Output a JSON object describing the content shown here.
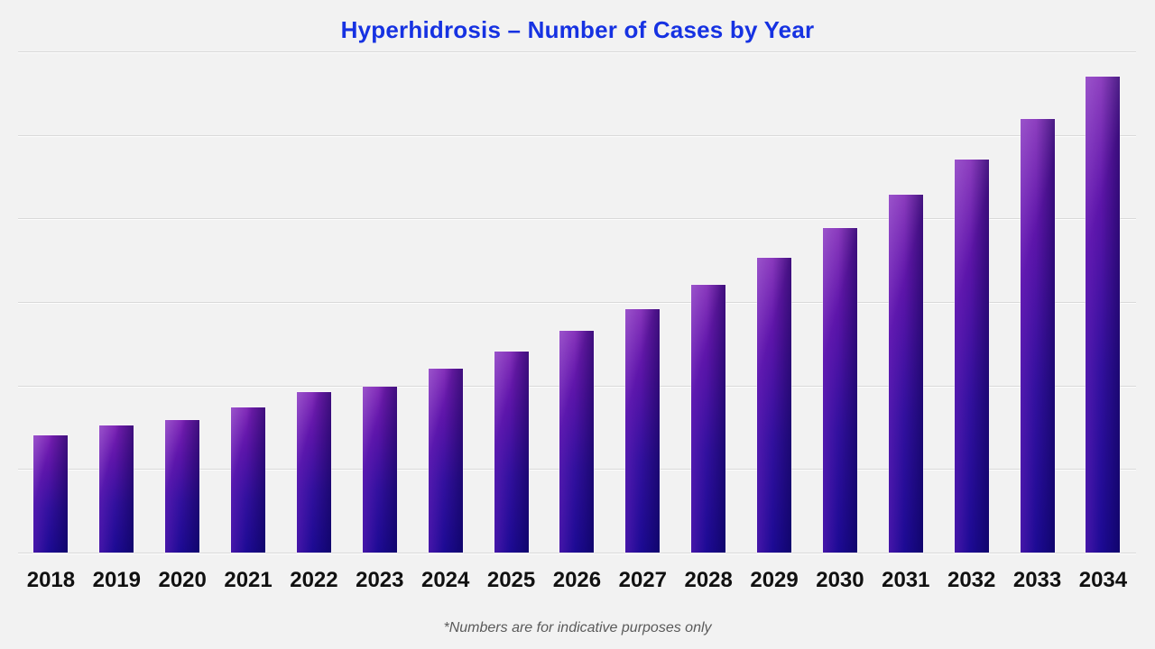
{
  "page": {
    "background_color": "#f2f2f2",
    "title_color": "#1632e2",
    "label_color": "#111111",
    "footnote_color": "#5a5a5a",
    "gridline_color": "#d9d9d9"
  },
  "chart_data": {
    "type": "bar",
    "title": "Hyperhidrosis – Number of Cases by Year",
    "categories": [
      "2018",
      "2019",
      "2020",
      "2021",
      "2022",
      "2023",
      "2024",
      "2025",
      "2026",
      "2027",
      "2028",
      "2029",
      "2030",
      "2031",
      "2032",
      "2033",
      "2034"
    ],
    "values": [
      140,
      152,
      159,
      174,
      192,
      199,
      220,
      241,
      266,
      291,
      321,
      353,
      389,
      428,
      471,
      519,
      570
    ],
    "xlabel": "",
    "ylabel": "",
    "ylim": [
      0,
      600
    ],
    "gridline_step": 100,
    "grid": "horizontal",
    "y_tick_labels_visible": false,
    "legend": "none",
    "bar_colors": {
      "top": "#7a1fb4",
      "mid": "#32109e",
      "bottom": "#1c0a94",
      "right_edge_dark": "#0a0560"
    },
    "footnote": "*Numbers are for indicative purposes only"
  }
}
